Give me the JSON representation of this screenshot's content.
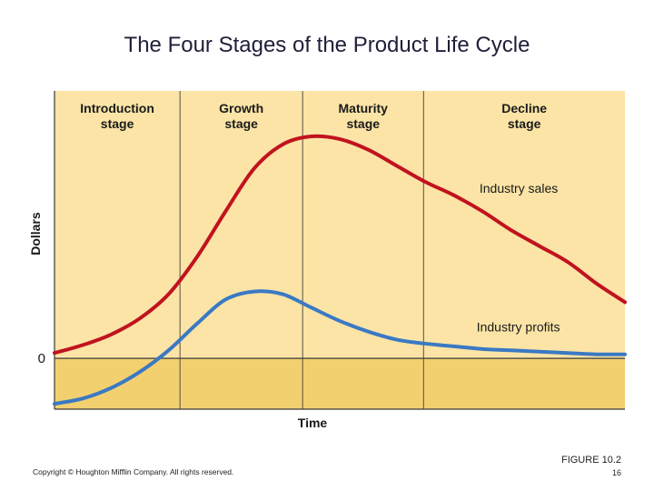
{
  "slide": {
    "title": "The Four Stages of the Product Life Cycle",
    "copyright": "Copyright © Houghton Mifflin Company. All rights reserved.",
    "figure_label": "FIGURE 10.2",
    "page_number": "16"
  },
  "colors": {
    "background": "#fbe4a6",
    "loss_area": "#f3d06f",
    "sales_line": "#c1121f",
    "profits_line": "#3a79c4",
    "divider": "#5a5040"
  },
  "chart_data": {
    "type": "line",
    "title": "",
    "xlabel": "Time",
    "ylabel": "Dollars",
    "y_tick_labels": [
      "0"
    ],
    "xlim": [
      0,
      1
    ],
    "ylim": [
      -0.19,
      1.0
    ],
    "stages": [
      {
        "label_line1": "Introduction",
        "label_line2": "stage",
        "start": 0.0,
        "end": 0.22
      },
      {
        "label_line1": "Growth",
        "label_line2": "stage",
        "start": 0.22,
        "end": 0.435
      },
      {
        "label_line1": "Maturity",
        "label_line2": "stage",
        "start": 0.435,
        "end": 0.647
      },
      {
        "label_line1": "Decline",
        "label_line2": "stage",
        "start": 0.647,
        "end": 1.0
      }
    ],
    "series": [
      {
        "name": "Industry sales",
        "x": [
          0.0,
          0.05,
          0.1,
          0.15,
          0.2,
          0.25,
          0.3,
          0.35,
          0.4,
          0.45,
          0.5,
          0.55,
          0.6,
          0.65,
          0.7,
          0.75,
          0.8,
          0.85,
          0.9,
          0.95,
          1.0
        ],
        "values": [
          0.02,
          0.05,
          0.09,
          0.15,
          0.24,
          0.38,
          0.55,
          0.71,
          0.8,
          0.83,
          0.82,
          0.78,
          0.72,
          0.66,
          0.61,
          0.55,
          0.48,
          0.42,
          0.36,
          0.28,
          0.21
        ]
      },
      {
        "name": "Industry profits",
        "x": [
          0.0,
          0.05,
          0.1,
          0.15,
          0.2,
          0.25,
          0.3,
          0.35,
          0.4,
          0.45,
          0.5,
          0.55,
          0.6,
          0.65,
          0.7,
          0.75,
          0.8,
          0.85,
          0.9,
          0.95,
          1.0
        ],
        "values": [
          -0.17,
          -0.15,
          -0.11,
          -0.05,
          0.03,
          0.13,
          0.22,
          0.25,
          0.24,
          0.19,
          0.14,
          0.1,
          0.07,
          0.055,
          0.045,
          0.035,
          0.03,
          0.025,
          0.02,
          0.015,
          0.015
        ]
      }
    ],
    "series_labels": [
      {
        "text": "Industry sales",
        "x": 0.745,
        "y": 0.62
      },
      {
        "text": "Industry profits",
        "x": 0.74,
        "y": 0.1
      }
    ],
    "grid": false,
    "legend": "none"
  }
}
